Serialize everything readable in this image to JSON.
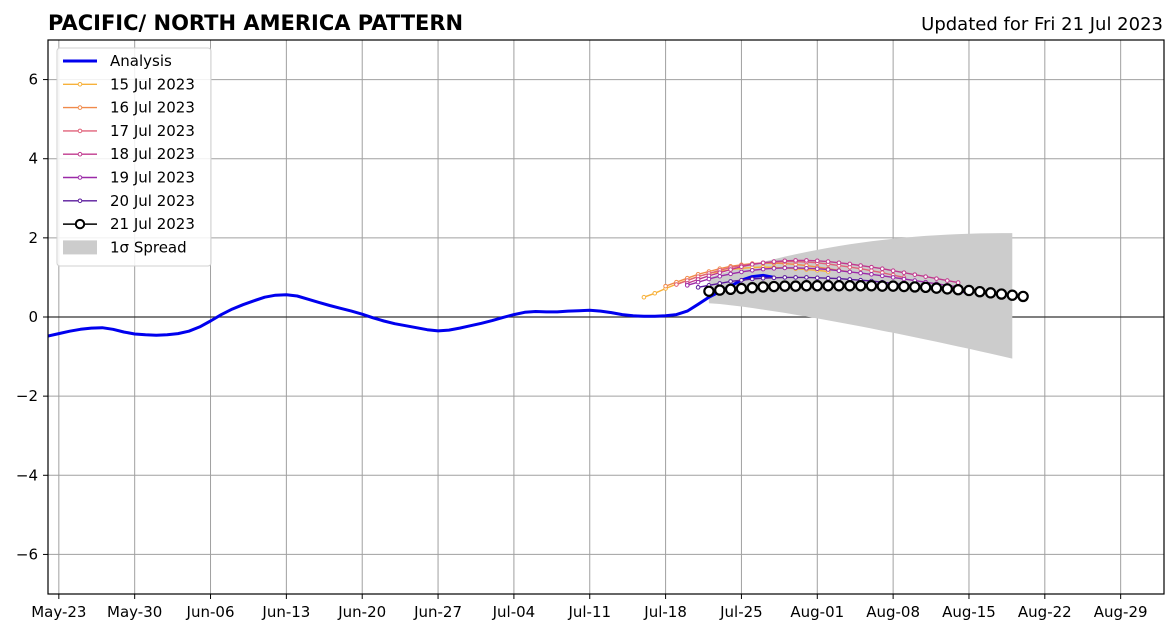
{
  "header": {
    "title": "PACIFIC/ NORTH AMERICA PATTERN",
    "updated": "Updated for Fri 21 Jul 2023"
  },
  "chart_data": {
    "type": "line",
    "title": "PACIFIC/ NORTH AMERICA PATTERN",
    "subtitle": "Updated for Fri 21 Jul 2023",
    "xlabel": "",
    "ylabel": "",
    "grid": true,
    "legend_position": "top-left",
    "xlim": [
      "2023-05-22",
      "2023-09-02"
    ],
    "ylim": [
      -7,
      7
    ],
    "x_ticks": [
      "May-23",
      "May-30",
      "Jun-06",
      "Jun-13",
      "Jun-20",
      "Jun-27",
      "Jul-04",
      "Jul-11",
      "Jul-18",
      "Jul-25",
      "Aug-01",
      "Aug-08",
      "Aug-15",
      "Aug-22",
      "Aug-29"
    ],
    "x_tick_dates": [
      "2023-05-23",
      "2023-05-30",
      "2023-06-06",
      "2023-06-13",
      "2023-06-20",
      "2023-06-27",
      "2023-07-04",
      "2023-07-11",
      "2023-07-18",
      "2023-07-25",
      "2023-08-01",
      "2023-08-08",
      "2023-08-15",
      "2023-08-22",
      "2023-08-29"
    ],
    "y_ticks": [
      "6",
      "4",
      "2",
      "0",
      "−2",
      "−4",
      "−6"
    ],
    "y_tick_values": [
      6,
      4,
      2,
      0,
      -2,
      -4,
      -6
    ],
    "zero_line": 0,
    "analysis": {
      "name": "Analysis",
      "color": "#0000ee",
      "start": "2023-05-22",
      "values": [
        -0.48,
        -0.42,
        -0.36,
        -0.31,
        -0.28,
        -0.27,
        -0.31,
        -0.38,
        -0.43,
        -0.45,
        -0.46,
        -0.45,
        -0.42,
        -0.36,
        -0.25,
        -0.1,
        0.06,
        0.2,
        0.31,
        0.41,
        0.5,
        0.55,
        0.56,
        0.53,
        0.45,
        0.37,
        0.29,
        0.22,
        0.15,
        0.07,
        -0.02,
        -0.1,
        -0.17,
        -0.22,
        -0.27,
        -0.32,
        -0.35,
        -0.33,
        -0.28,
        -0.22,
        -0.16,
        -0.09,
        -0.01,
        0.06,
        0.12,
        0.14,
        0.13,
        0.13,
        0.15,
        0.16,
        0.17,
        0.15,
        0.11,
        0.06,
        0.03,
        0.02,
        0.02,
        0.03,
        0.06,
        0.15,
        0.32,
        0.5,
        0.64,
        0.78,
        0.93,
        1.02,
        1.05,
        1.0
      ]
    },
    "forecasts": [
      {
        "name": "15 Jul 2023",
        "color": "#f7b13a",
        "start": "2023-07-16",
        "values": [
          0.5,
          0.6,
          0.72,
          0.83,
          0.93,
          1.02,
          1.1,
          1.15,
          1.2,
          1.23,
          1.25,
          1.26,
          1.25,
          1.24,
          1.22,
          1.2,
          1.18,
          1.15
        ]
      },
      {
        "name": "16 Jul 2023",
        "color": "#f08a4b",
        "start": "2023-07-18",
        "values": [
          0.78,
          0.88,
          0.98,
          1.08,
          1.15,
          1.22,
          1.28,
          1.32,
          1.35,
          1.36,
          1.36,
          1.35,
          1.33,
          1.3,
          1.26,
          1.22,
          1.18,
          1.14
        ]
      },
      {
        "name": "17 Jul 2023",
        "color": "#e0627a",
        "start": "2023-07-19",
        "values": [
          0.82,
          0.92,
          1.02,
          1.1,
          1.18,
          1.25,
          1.3,
          1.34,
          1.37,
          1.39,
          1.4,
          1.4,
          1.39,
          1.37,
          1.34,
          1.3,
          1.26,
          1.22,
          1.17,
          1.12,
          1.06,
          1.0
        ]
      },
      {
        "name": "18 Jul 2023",
        "color": "#c0398e",
        "start": "2023-07-20",
        "values": [
          0.85,
          0.95,
          1.04,
          1.12,
          1.2,
          1.27,
          1.33,
          1.37,
          1.4,
          1.42,
          1.43,
          1.43,
          1.42,
          1.4,
          1.37,
          1.34,
          1.3,
          1.26,
          1.22,
          1.17,
          1.12,
          1.07,
          1.02,
          0.97,
          0.92,
          0.87
        ]
      },
      {
        "name": "19 Jul 2023",
        "color": "#9b2aa8",
        "start": "2023-07-20",
        "values": [
          0.8,
          0.88,
          0.96,
          1.03,
          1.09,
          1.14,
          1.18,
          1.21,
          1.23,
          1.24,
          1.24,
          1.23,
          1.22,
          1.2,
          1.17,
          1.14,
          1.11,
          1.08,
          1.04,
          1.0,
          0.96,
          0.92,
          0.88,
          0.84,
          0.8,
          0.76
        ]
      },
      {
        "name": "20 Jul 2023",
        "color": "#5a1a9c",
        "start": "2023-07-21",
        "values": [
          0.75,
          0.8,
          0.85,
          0.9,
          0.93,
          0.96,
          0.98,
          0.99,
          1.0,
          1.0,
          1.0,
          0.99,
          0.98,
          0.97,
          0.95,
          0.93,
          0.91,
          0.88,
          0.85,
          0.82,
          0.79,
          0.76,
          0.72,
          0.68,
          0.64,
          0.6
        ]
      }
    ],
    "current_forecast": {
      "name": "21 Jul 2023",
      "color": "#000000",
      "start": "2023-07-22",
      "values": [
        0.65,
        0.68,
        0.7,
        0.72,
        0.74,
        0.76,
        0.77,
        0.78,
        0.78,
        0.79,
        0.79,
        0.79,
        0.79,
        0.79,
        0.79,
        0.79,
        0.78,
        0.78,
        0.77,
        0.76,
        0.75,
        0.73,
        0.71,
        0.69,
        0.67,
        0.64,
        0.61,
        0.58,
        0.55,
        0.52
      ]
    },
    "spread": {
      "name": "1σ Spread",
      "color": "#cccccc",
      "start": "2023-07-22",
      "end": "2023-08-19",
      "upper_start": 1.0,
      "upper_end": 2.12,
      "lower_start": 0.35,
      "lower_end": -1.05
    },
    "legend": [
      "Analysis",
      "15 Jul 2023",
      "16 Jul 2023",
      "17 Jul 2023",
      "18 Jul 2023",
      "19 Jul 2023",
      "20 Jul 2023",
      "21 Jul 2023",
      "1σ Spread"
    ]
  }
}
